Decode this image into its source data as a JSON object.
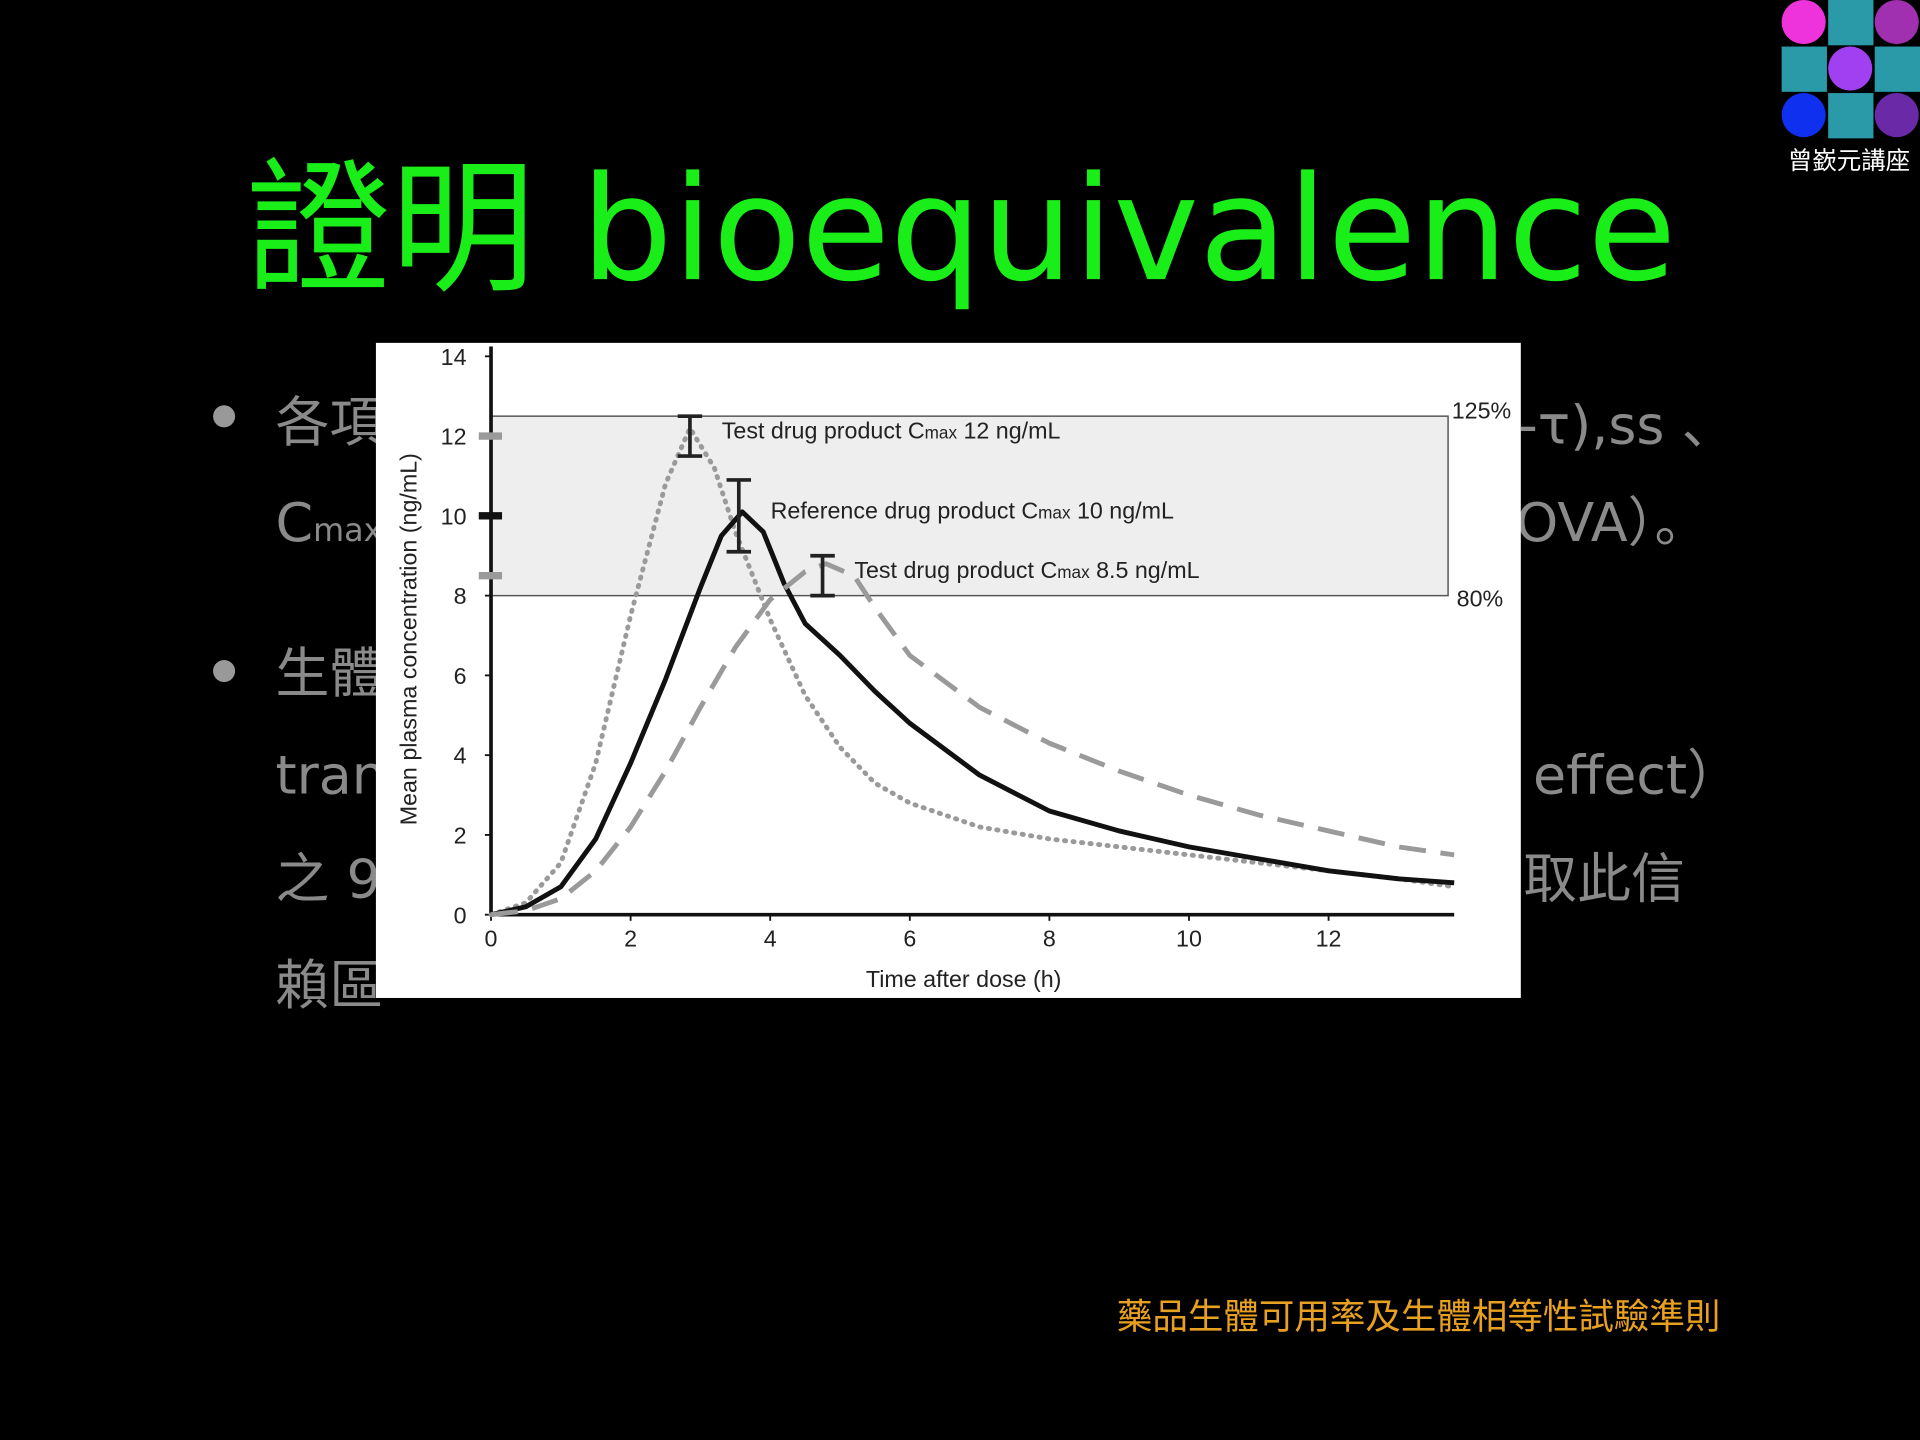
{
  "logo": {
    "caption": "曾嶔元講座"
  },
  "title": "證明 bioequivalence",
  "bullet_fragments": [
    "各項",
    "-τ),ss 、",
    {
      "text": "C",
      "sub": "max"
    },
    "OVA）。",
    "生體",
    "tran",
    "effect）",
    "之 9",
    "取此信",
    "賴區"
  ],
  "footer": "藥品生體可用率及生體相等性試驗準則",
  "chart_data": {
    "type": "line",
    "xlabel": "Time after dose (h)",
    "ylabel": "Mean plasma concentration (ng/mL)",
    "xlim": [
      0,
      13.8
    ],
    "ylim": [
      0,
      14
    ],
    "xticks": [
      0,
      2,
      4,
      6,
      8,
      10,
      12
    ],
    "yticks": [
      0,
      2,
      4,
      6,
      8,
      10,
      12,
      14
    ],
    "band": {
      "low": 8,
      "high": 12.5,
      "low_label": "80%",
      "high_label": "125%"
    },
    "series": [
      {
        "color": "#9a9a9a",
        "style": "dotted",
        "x": [
          0,
          0.5,
          1,
          1.5,
          2,
          2.5,
          2.85,
          3.2,
          3.5,
          4,
          4.5,
          5,
          5.5,
          6,
          7,
          8,
          9,
          10,
          11,
          12,
          13,
          13.8
        ],
        "values": [
          0,
          0.3,
          1.3,
          3.8,
          7.5,
          10.8,
          12.2,
          11.2,
          9.6,
          7.4,
          5.5,
          4.2,
          3.3,
          2.8,
          2.2,
          1.9,
          1.7,
          1.5,
          1.3,
          1.1,
          0.9,
          0.7
        ],
        "peak": {
          "x": 2.85,
          "value": 12,
          "error": 0.5,
          "label_prefix": "Test drug product C",
          "label_sub": "max",
          "label_suffix": " 12 ng/mL"
        }
      },
      {
        "color": "#111111",
        "style": "solid",
        "x": [
          0,
          0.5,
          1,
          1.5,
          2,
          2.5,
          3,
          3.3,
          3.6,
          3.9,
          4.2,
          4.5,
          5,
          5.5,
          6,
          7,
          8,
          9,
          10,
          11,
          12,
          13,
          13.8
        ],
        "values": [
          0,
          0.2,
          0.7,
          1.9,
          3.8,
          5.9,
          8.2,
          9.5,
          10.1,
          9.6,
          8.3,
          7.3,
          6.5,
          5.6,
          4.8,
          3.5,
          2.6,
          2.1,
          1.7,
          1.4,
          1.1,
          0.9,
          0.8
        ],
        "peak": {
          "x": 3.55,
          "value": 10,
          "error": 0.9,
          "label_prefix": "Reference drug product C",
          "label_sub": "max",
          "label_suffix": " 10 ng/mL"
        }
      },
      {
        "color": "#9a9a9a",
        "style": "dashed",
        "x": [
          0,
          0.5,
          1,
          1.5,
          2,
          2.5,
          3,
          3.5,
          4,
          4.5,
          4.8,
          5.2,
          5.5,
          6,
          7,
          8,
          9,
          10,
          11,
          12,
          13,
          13.8
        ],
        "values": [
          0,
          0.1,
          0.4,
          1.1,
          2.2,
          3.6,
          5.2,
          6.7,
          7.9,
          8.6,
          8.8,
          8.5,
          7.7,
          6.5,
          5.2,
          4.3,
          3.6,
          3.0,
          2.5,
          2.1,
          1.7,
          1.5
        ],
        "peak": {
          "x": 4.75,
          "value": 8.5,
          "error": 0.5,
          "label_prefix": "Test drug product C",
          "label_sub": "max",
          "label_suffix": " 8.5 ng/mL"
        }
      }
    ]
  }
}
